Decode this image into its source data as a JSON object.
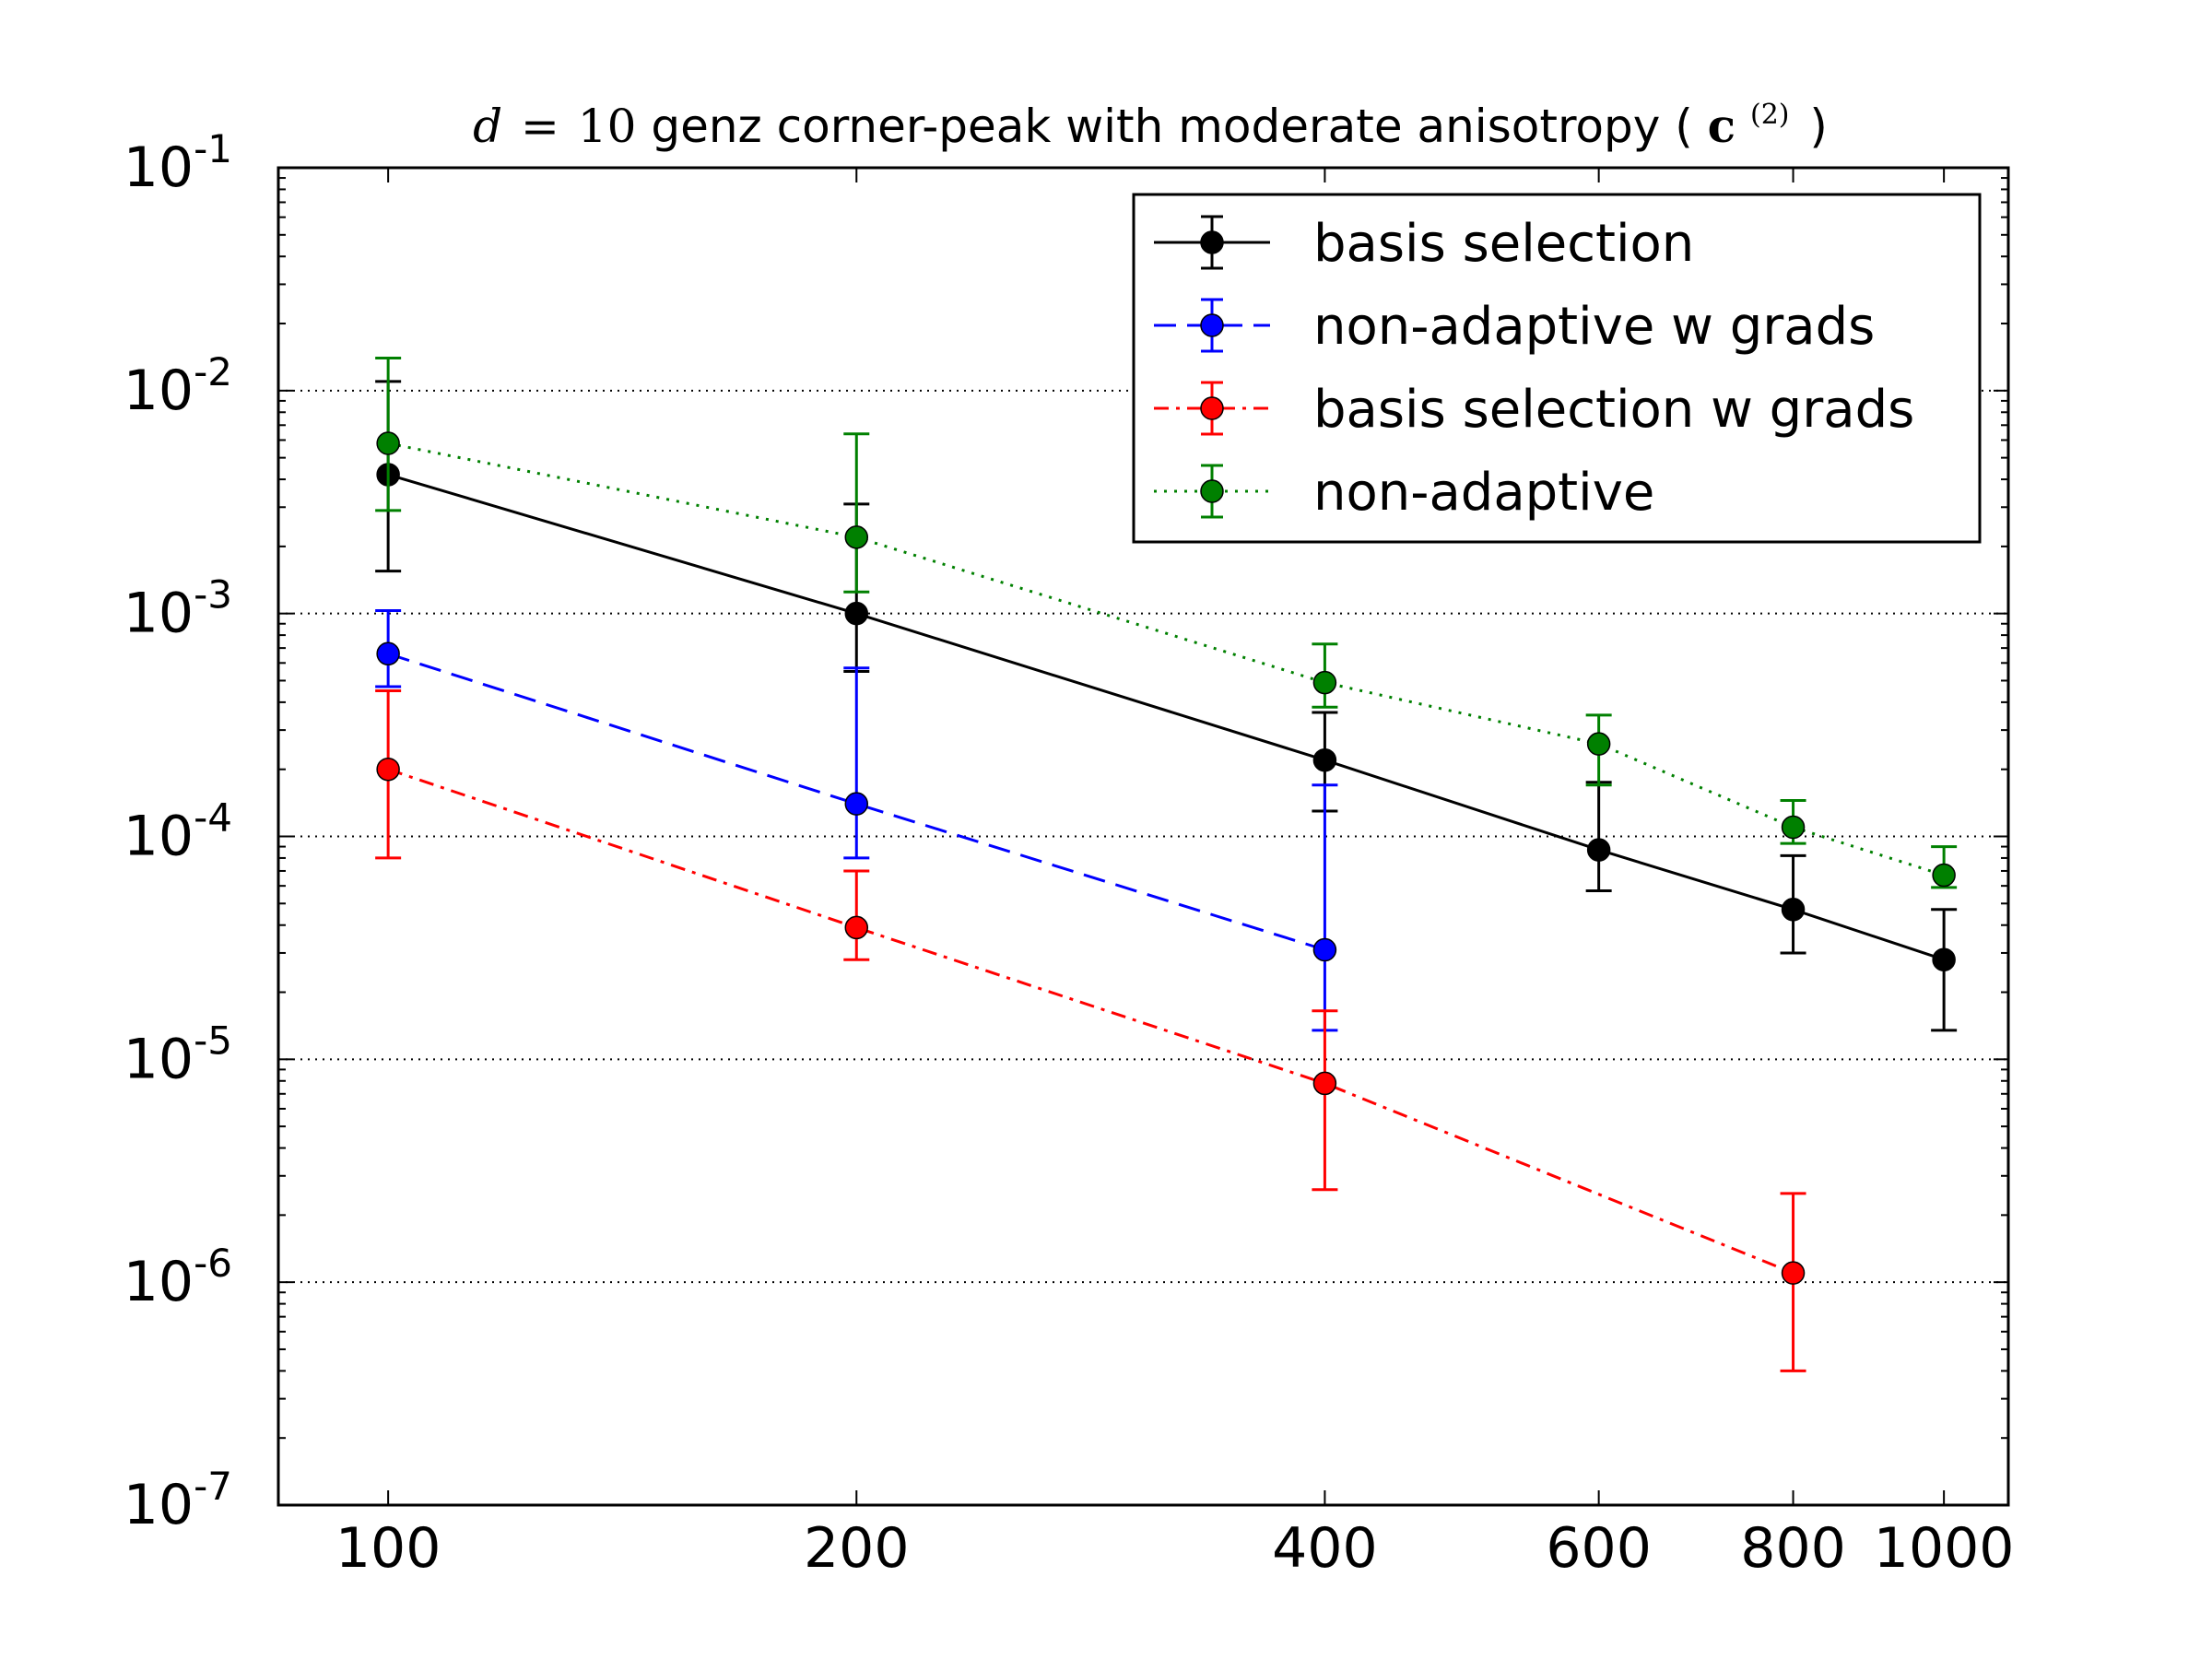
{
  "chart_data": {
    "type": "line",
    "title": {
      "math_var": "d",
      "math_eq": "=",
      "math_num": "10",
      "main": " genz corner-peak with moderate anisotropy (",
      "vector": "c",
      "superscript": "(2)",
      "close": ")"
    },
    "xscale": "log",
    "yscale": "log",
    "xlim": [
      85,
      1100
    ],
    "ylim": [
      1e-07,
      0.1
    ],
    "xlabel": "",
    "ylabel": "",
    "x_ticks": [
      {
        "value": 100,
        "label": "100"
      },
      {
        "value": 200,
        "label": "200"
      },
      {
        "value": 400,
        "label": "400"
      },
      {
        "value": 600,
        "label": "600"
      },
      {
        "value": 800,
        "label": "800"
      },
      {
        "value": 1000,
        "label": "1000"
      }
    ],
    "y_ticks": [
      {
        "value": 1e-07,
        "base": "10",
        "exp": "-7"
      },
      {
        "value": 1e-06,
        "base": "10",
        "exp": "-6"
      },
      {
        "value": 1e-05,
        "base": "10",
        "exp": "-5"
      },
      {
        "value": 0.0001,
        "base": "10",
        "exp": "-4"
      },
      {
        "value": 0.001,
        "base": "10",
        "exp": "-3"
      },
      {
        "value": 0.01,
        "base": "10",
        "exp": "-2"
      },
      {
        "value": 0.1,
        "base": "10",
        "exp": "-1"
      }
    ],
    "grid": {
      "y": true,
      "x": false,
      "style": "dotted"
    },
    "legend": {
      "location": "upper right"
    },
    "series": [
      {
        "name": "basis selection",
        "color": "#000000",
        "dash": "solid",
        "points": [
          {
            "x": 100,
            "y": 0.0042,
            "lo": 0.00155,
            "hi": 0.011
          },
          {
            "x": 200,
            "y": 0.001,
            "lo": 0.00055,
            "hi": 0.0031
          },
          {
            "x": 400,
            "y": 0.00022,
            "lo": 0.00013,
            "hi": 0.00036
          },
          {
            "x": 600,
            "y": 8.7e-05,
            "lo": 5.7e-05,
            "hi": 0.000175
          },
          {
            "x": 800,
            "y": 4.7e-05,
            "lo": 3e-05,
            "hi": 8.2e-05
          },
          {
            "x": 1000,
            "y": 2.8e-05,
            "lo": 1.35e-05,
            "hi": 4.7e-05
          }
        ]
      },
      {
        "name": "non-adaptive w grads",
        "color": "#0000ff",
        "dash": "dashed",
        "points": [
          {
            "x": 100,
            "y": 0.00066,
            "lo": 0.00047,
            "hi": 0.00103
          },
          {
            "x": 200,
            "y": 0.00014,
            "lo": 8e-05,
            "hi": 0.00057
          },
          {
            "x": 400,
            "y": 3.1e-05,
            "lo": 1.35e-05,
            "hi": 0.00017
          }
        ]
      },
      {
        "name": "basis selection w grads",
        "color": "#ff0000",
        "dash": "dashdot",
        "points": [
          {
            "x": 100,
            "y": 0.0002,
            "lo": 8e-05,
            "hi": 0.00045
          },
          {
            "x": 200,
            "y": 3.9e-05,
            "lo": 2.8e-05,
            "hi": 7e-05
          },
          {
            "x": 400,
            "y": 7.8e-06,
            "lo": 2.6e-06,
            "hi": 1.65e-05
          },
          {
            "x": 800,
            "y": 1.1e-06,
            "lo": 4e-07,
            "hi": 2.5e-06
          }
        ]
      },
      {
        "name": "non-adaptive",
        "color": "#008000",
        "dash": "dotted",
        "points": [
          {
            "x": 100,
            "y": 0.0058,
            "lo": 0.0029,
            "hi": 0.014
          },
          {
            "x": 200,
            "y": 0.0022,
            "lo": 0.00125,
            "hi": 0.0064
          },
          {
            "x": 400,
            "y": 0.00049,
            "lo": 0.00038,
            "hi": 0.00073
          },
          {
            "x": 600,
            "y": 0.00026,
            "lo": 0.00017,
            "hi": 0.00035
          },
          {
            "x": 800,
            "y": 0.00011,
            "lo": 9.3e-05,
            "hi": 0.000145
          },
          {
            "x": 1000,
            "y": 6.7e-05,
            "lo": 5.9e-05,
            "hi": 9e-05
          }
        ]
      }
    ]
  }
}
